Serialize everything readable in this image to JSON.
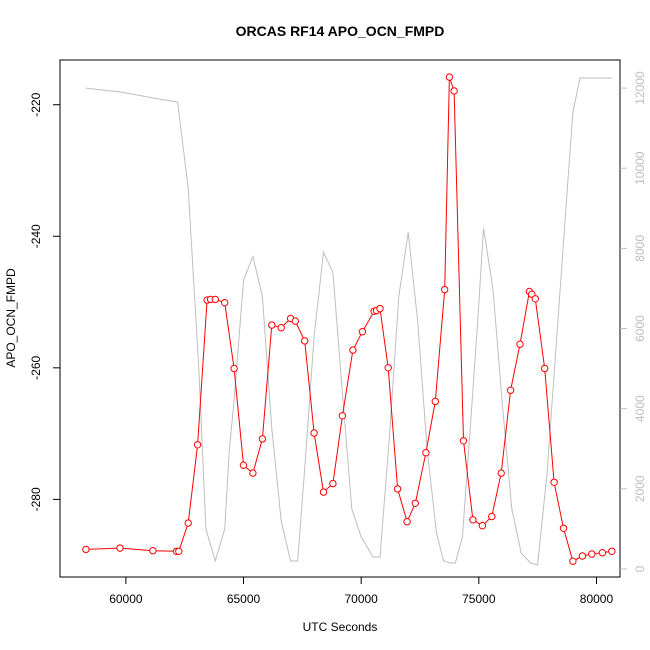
{
  "chart_data": {
    "type": "line",
    "title": "ORCAS RF14 APO_OCN_FMPD",
    "xlabel": "UTC Seconds",
    "ylabel": "APO_OCN_FMPD",
    "y2label": "",
    "xlim": [
      57200,
      81000
    ],
    "ylim": [
      -291.8,
      -213.2
    ],
    "y2lim": [
      -200,
      12700
    ],
    "x_ticks": [
      60000,
      65000,
      70000,
      75000,
      80000
    ],
    "y_ticks": [
      -280,
      -260,
      -240,
      -220
    ],
    "y2_ticks": [
      0,
      2000,
      4000,
      6000,
      8000,
      10000,
      12000
    ],
    "grid": false,
    "series": [
      {
        "color": "#ff0000",
        "axis": "left",
        "style": "line+points",
        "x": [
          58300,
          59750,
          61150,
          62150,
          62250,
          62650,
          63050,
          63450,
          63600,
          63800,
          64200,
          64600,
          65000,
          65400,
          65800,
          66200,
          66600,
          67000,
          67200,
          67600,
          68000,
          68400,
          68800,
          69200,
          69650,
          70050,
          70550,
          70650,
          70800,
          71150,
          71550,
          71950,
          72300,
          72750,
          73150,
          73550,
          73750,
          73950,
          74350,
          74750,
          75150,
          75550,
          75950,
          76350,
          76750,
          77150,
          77250,
          77400,
          77800,
          78200,
          78600,
          79000,
          79400,
          79800,
          80250,
          80650
        ],
        "y": [
          -287.6,
          -287.4,
          -287.8,
          -287.9,
          -287.9,
          -283.6,
          -271.7,
          -249.7,
          -249.6,
          -249.6,
          -250.1,
          -260.1,
          -274.8,
          -276.0,
          -270.8,
          -253.5,
          -253.9,
          -252.5,
          -252.9,
          -255.9,
          -269.9,
          -278.9,
          -277.6,
          -267.3,
          -257.3,
          -254.5,
          -251.4,
          -251.3,
          -251.0,
          -260.0,
          -278.4,
          -283.4,
          -280.6,
          -272.9,
          -265.1,
          -248.1,
          -215.8,
          -217.9,
          -271.1,
          -283.1,
          -284.0,
          -282.6,
          -276.0,
          -263.4,
          -256.4,
          -248.4,
          -248.8,
          -249.5,
          -260.1,
          -277.4,
          -284.4,
          -289.4,
          -288.6,
          -288.3,
          -288.1,
          -287.9
        ]
      },
      {
        "color": "#bebebe",
        "axis": "right",
        "style": "line",
        "x": [
          58300,
          59800,
          61200,
          62200,
          62650,
          63100,
          63400,
          63800,
          64200,
          64400,
          64600,
          65000,
          65400,
          65800,
          66200,
          66600,
          67000,
          67300,
          67600,
          68000,
          68400,
          68800,
          69200,
          69600,
          70000,
          70500,
          70800,
          71200,
          71600,
          72000,
          72400,
          72800,
          73200,
          73500,
          73800,
          74000,
          74300,
          74600,
          75000,
          75200,
          75600,
          76000,
          76400,
          76800,
          77200,
          77500,
          77900,
          78300,
          78700,
          79000,
          79300,
          79800,
          80200,
          80650
        ],
        "y": [
          12000,
          11900,
          11750,
          11650,
          9500,
          5000,
          1000,
          200,
          1000,
          3000,
          4200,
          7200,
          7800,
          6800,
          3500,
          1200,
          200,
          200,
          2500,
          5800,
          7900,
          7400,
          4400,
          1500,
          800,
          300,
          300,
          3300,
          6800,
          8400,
          6200,
          3000,
          900,
          200,
          150,
          150,
          800,
          3200,
          6600,
          8500,
          7000,
          4100,
          1500,
          400,
          150,
          100,
          2400,
          5700,
          9000,
          11400,
          12250,
          12250,
          12250,
          12250
        ]
      }
    ]
  }
}
